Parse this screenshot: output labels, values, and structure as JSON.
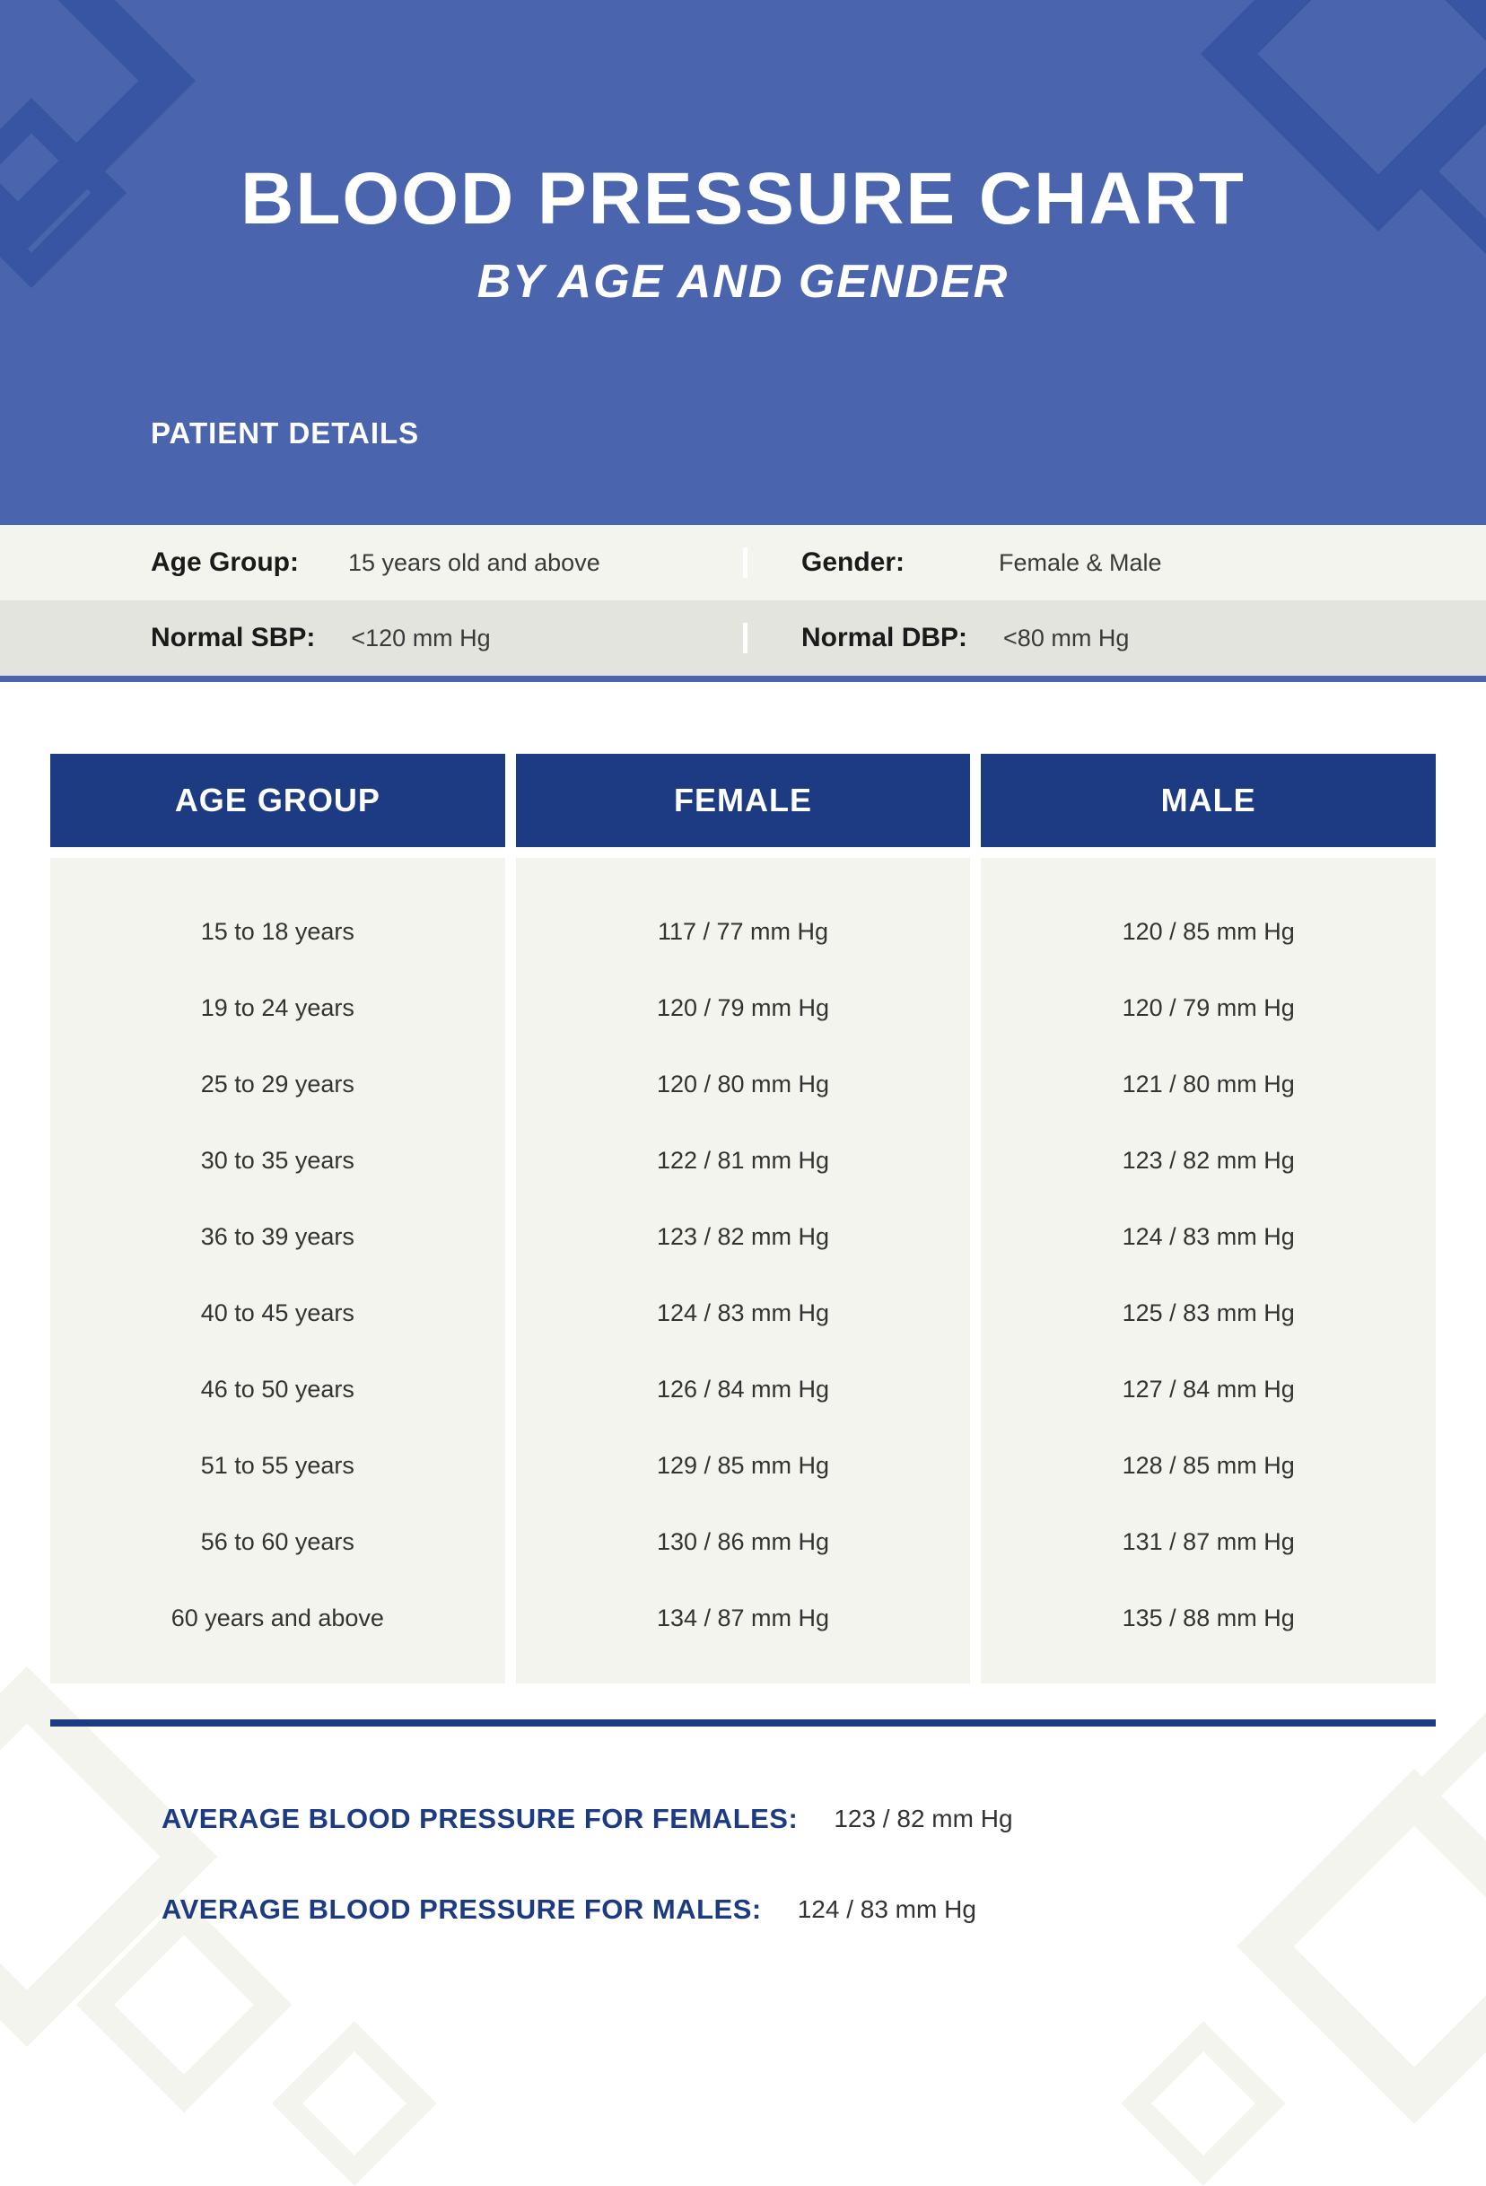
{
  "header": {
    "title": "BLOOD PRESSURE CHART",
    "subtitle": "BY AGE AND GENDER",
    "patient_label": "PATIENT DETAILS",
    "bg_color": "#4a65ae",
    "accent_color": "#3755a2",
    "text_color": "#ffffff",
    "title_fontsize": 82,
    "subtitle_fontsize": 52
  },
  "details": {
    "rows": [
      {
        "left_label": "Age Group:",
        "left_value": "15 years old and above",
        "right_label": "Gender:",
        "right_value": "Female & Male",
        "bg_color": "#f4f4ee"
      },
      {
        "left_label": "Normal SBP:",
        "left_value": "<120 mm Hg",
        "right_label": "Normal DBP:",
        "right_value": "<80 mm Hg",
        "bg_color": "#e4e4de"
      }
    ],
    "border_color": "#4a65ae",
    "label_fontsize": 30,
    "value_fontsize": 27
  },
  "table": {
    "type": "table",
    "header_bg_color": "#1d3b82",
    "header_text_color": "#ffffff",
    "body_bg_color": "#f4f4ee",
    "text_color": "#333333",
    "border_color": "#1d3b82",
    "header_fontsize": 36,
    "cell_fontsize": 27,
    "columns": [
      "AGE GROUP",
      "FEMALE",
      "MALE"
    ],
    "rows": [
      [
        "15 to 18 years",
        "117 / 77 mm Hg",
        "120 / 85 mm Hg"
      ],
      [
        "19 to 24 years",
        "120 / 79 mm Hg",
        "120 / 79 mm Hg"
      ],
      [
        "25 to 29 years",
        "120 / 80 mm Hg",
        "121 / 80 mm Hg"
      ],
      [
        "30 to 35 years",
        "122 / 81 mm Hg",
        "123 / 82 mm Hg"
      ],
      [
        "36 to 39 years",
        "123 / 82 mm Hg",
        "124 / 83 mm Hg"
      ],
      [
        "40 to 45 years",
        "124 / 83 mm Hg",
        "125 / 83 mm Hg"
      ],
      [
        "46 to 50 years",
        "126 / 84 mm Hg",
        "127 / 84 mm Hg"
      ],
      [
        "51 to 55 years",
        "129 / 85 mm Hg",
        "128 / 85 mm Hg"
      ],
      [
        "56 to 60 years",
        "130 / 86 mm Hg",
        "131 / 87 mm Hg"
      ],
      [
        "60 years and above",
        "134 / 87 mm Hg",
        "135 / 88 mm Hg"
      ]
    ]
  },
  "averages": {
    "label_color": "#1d3b82",
    "value_color": "#333333",
    "label_fontsize": 31,
    "value_fontsize": 28,
    "items": [
      {
        "label": "AVERAGE BLOOD PRESSURE FOR FEMALES:",
        "value": "123 / 82 mm Hg"
      },
      {
        "label": "AVERAGE BLOOD PRESSURE FOR MALES:",
        "value": "124 / 83 mm Hg"
      }
    ]
  },
  "decoration": {
    "bottom_diamond_color": "#f4f4ee"
  }
}
